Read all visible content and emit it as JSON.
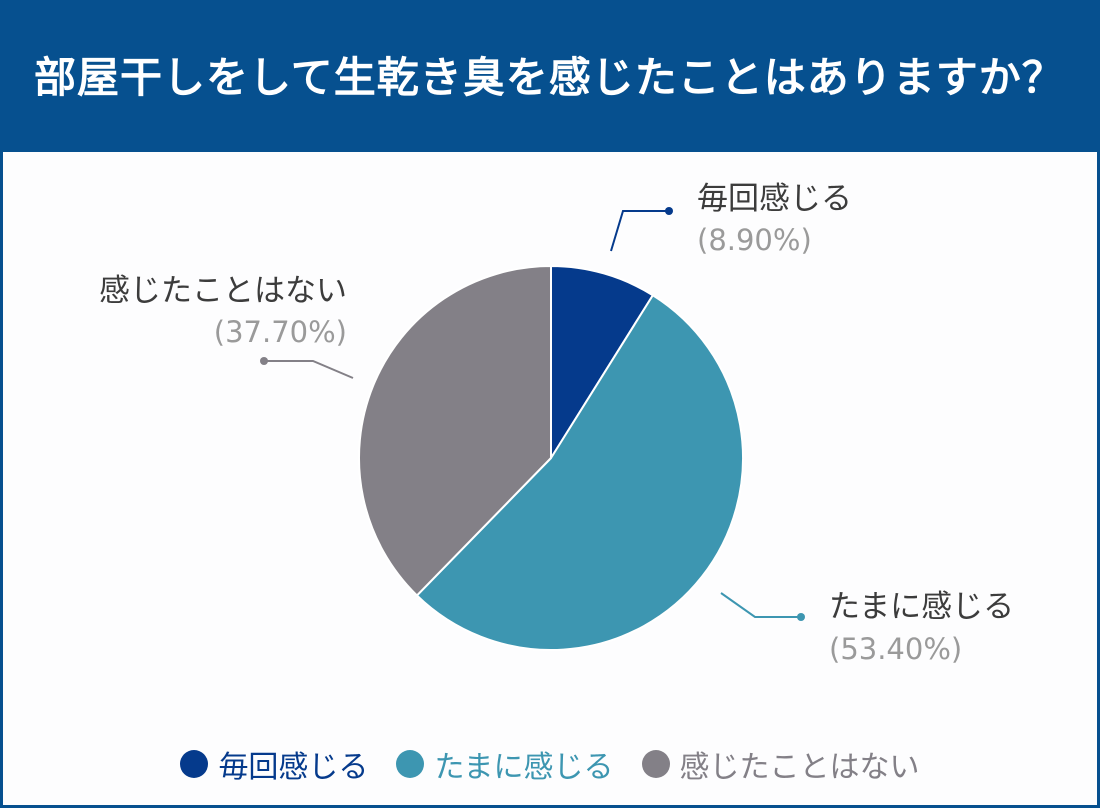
{
  "header": {
    "title": "部屋干しをして生乾き臭を感じたことはありますか？"
  },
  "colors": {
    "header_bg": "#06508f",
    "slice_1": "#053a8c",
    "slice_2": "#3d96b1",
    "slice_3": "#838087"
  },
  "chart_data": {
    "type": "pie",
    "title": "部屋干しをして生乾き臭を感じたことはありますか？",
    "slices": [
      {
        "label": "毎回感じる",
        "value": 8.9,
        "pct_label": "(8.90%)",
        "color": "#053a8c"
      },
      {
        "label": "たまに感じる",
        "value": 53.4,
        "pct_label": "(53.40%)",
        "color": "#3d96b1"
      },
      {
        "label": "感じたことはない",
        "value": 37.7,
        "pct_label": "(37.70%)",
        "color": "#838087"
      }
    ],
    "legend_position": "bottom"
  },
  "legend": {
    "items": [
      {
        "label": "毎回感じる",
        "color": "#053a8c"
      },
      {
        "label": "たまに感じる",
        "color": "#3d96b1"
      },
      {
        "label": "感じたことはない",
        "color": "#838087"
      }
    ]
  }
}
